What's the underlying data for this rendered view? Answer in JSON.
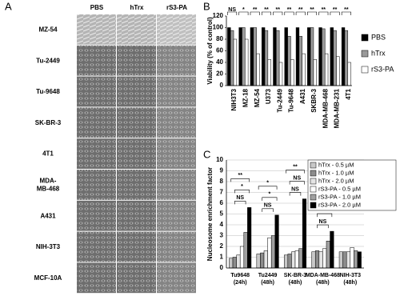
{
  "panel_a": {
    "label": "A",
    "columns": [
      "PBS",
      "hTrx",
      "rS3-PA"
    ],
    "rows": [
      "MZ-54",
      "Tu-2449",
      "Tu-9648",
      "SK-BR-3",
      "4T1",
      [
        "MDA-",
        "MB-468"
      ],
      "A431",
      "NIH-3T3",
      "MCF-10A"
    ]
  },
  "chart_data": [
    {
      "type": "bar",
      "panel_label": "B",
      "y_label": "Viability (% of control)",
      "categories": [
        "NIH3T3",
        "MZ-18",
        "MZ-54",
        "U373",
        "Tu-2449",
        "Tu-9648",
        "A431",
        "SKBR-3",
        "MDA-MB-468",
        "MDA-MB-231",
        "4T1"
      ],
      "series": [
        {
          "name": "PBS",
          "color": "#000000",
          "values": [
            100,
            100,
            100,
            100,
            100,
            100,
            100,
            100,
            100,
            100,
            100
          ]
        },
        {
          "name": "hTrx",
          "color": "#999999",
          "values": [
            95,
            100,
            100,
            95,
            95,
            85,
            85,
            100,
            98,
            95,
            95
          ]
        },
        {
          "name": "rS3-PA",
          "color": "#ffffff",
          "values": [
            80,
            80,
            55,
            45,
            40,
            45,
            55,
            45,
            55,
            50,
            40
          ]
        }
      ],
      "annotations": [
        "NS",
        "*",
        "**",
        "**",
        "**",
        "**",
        "**",
        "**",
        "**",
        "**",
        "**"
      ],
      "ylim": [
        0,
        120
      ],
      "yticks": [
        0,
        20,
        40,
        60,
        80,
        100,
        120
      ],
      "grid": false,
      "legend": "right"
    },
    {
      "type": "bar",
      "panel_label": "C",
      "y_label": "Nucleosome enrichment factor",
      "categories": [
        [
          "Tu9648",
          "(24h)"
        ],
        [
          "Tu2449",
          "(48h)"
        ],
        [
          "SK-BR-3",
          "(48h)"
        ],
        [
          "MDA-MB-468",
          "(48h)"
        ],
        [
          "NIH-3T3",
          "(48h)"
        ]
      ],
      "series": [
        {
          "name": "hTrx - 0.5 µM",
          "color": "#c8c8c8",
          "values": [
            0.9,
            1.3,
            1.2,
            1.5,
            1.5
          ]
        },
        {
          "name": "hTrx - 1.0 µM",
          "color": "#8c8c8c",
          "values": [
            1.0,
            1.4,
            1.3,
            1.6,
            1.5
          ]
        },
        {
          "name": "hTrx - 2.0 µM",
          "color": "#e4e4e4",
          "values": [
            1.2,
            1.6,
            1.5,
            1.5,
            1.5
          ]
        },
        {
          "name": "rS3-PA - 0.5 µM",
          "color": "#ffffff",
          "values": [
            2.0,
            2.8,
            1.6,
            1.8,
            1.9
          ]
        },
        {
          "name": "rS3-PA - 1.0 µM",
          "color": "#a0a0a0",
          "values": [
            3.3,
            3.0,
            1.8,
            2.5,
            1.6
          ]
        },
        {
          "name": "rS3-PA - 2.0 µM",
          "color": "#000000",
          "values": [
            5.6,
            4.9,
            6.4,
            3.4,
            1.5
          ]
        }
      ],
      "annotations": [
        [
          "NS",
          "*",
          "**"
        ],
        [
          "NS",
          "*",
          "*"
        ],
        [
          "NS",
          "NS",
          "**"
        ],
        [
          "NS",
          "*"
        ],
        []
      ],
      "ylim": [
        0,
        10
      ],
      "yticks": [
        0,
        1,
        2,
        3,
        4,
        5,
        6,
        7,
        8,
        9,
        10
      ],
      "grid": true,
      "legend": "upper right"
    }
  ]
}
